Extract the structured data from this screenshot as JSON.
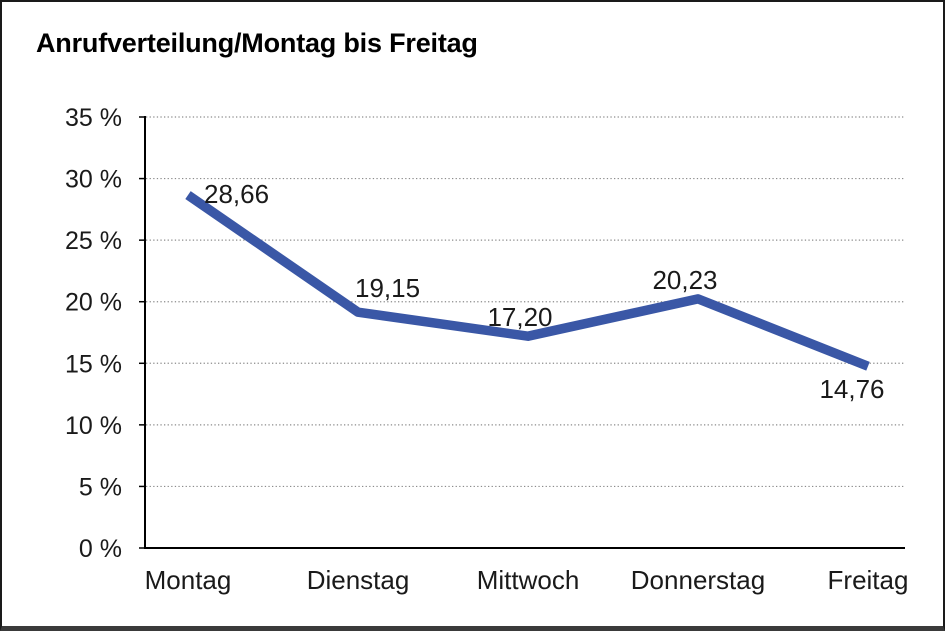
{
  "chart_data": {
    "type": "line",
    "title": "Anrufverteilung/Montag bis Freitag",
    "categories": [
      "Montag",
      "Dienstag",
      "Mittwoch",
      "Donnerstag",
      "Freitag"
    ],
    "series": [
      {
        "name": "Anrufverteilung",
        "values": [
          28.66,
          19.15,
          17.2,
          20.23,
          14.76
        ],
        "value_labels": [
          "28,66",
          "19,15",
          "17,20",
          "20,23",
          "14,76"
        ]
      }
    ],
    "xlabel": "",
    "ylabel": "",
    "ylim": [
      0,
      35
    ],
    "ytick_step": 5,
    "ytick_labels": [
      "0 %",
      "5 %",
      "10 %",
      "15 %",
      "20 %",
      "25 %",
      "30 %",
      "35 %"
    ],
    "grid": "horizontal-dotted",
    "legend": "none",
    "colors": {
      "line": "#3a57a6",
      "axis": "#000000",
      "gridline": "#8c8c8c",
      "text": "#1a1a1a",
      "background": "#ffffff",
      "frame_border": "#1a1a1a"
    }
  }
}
